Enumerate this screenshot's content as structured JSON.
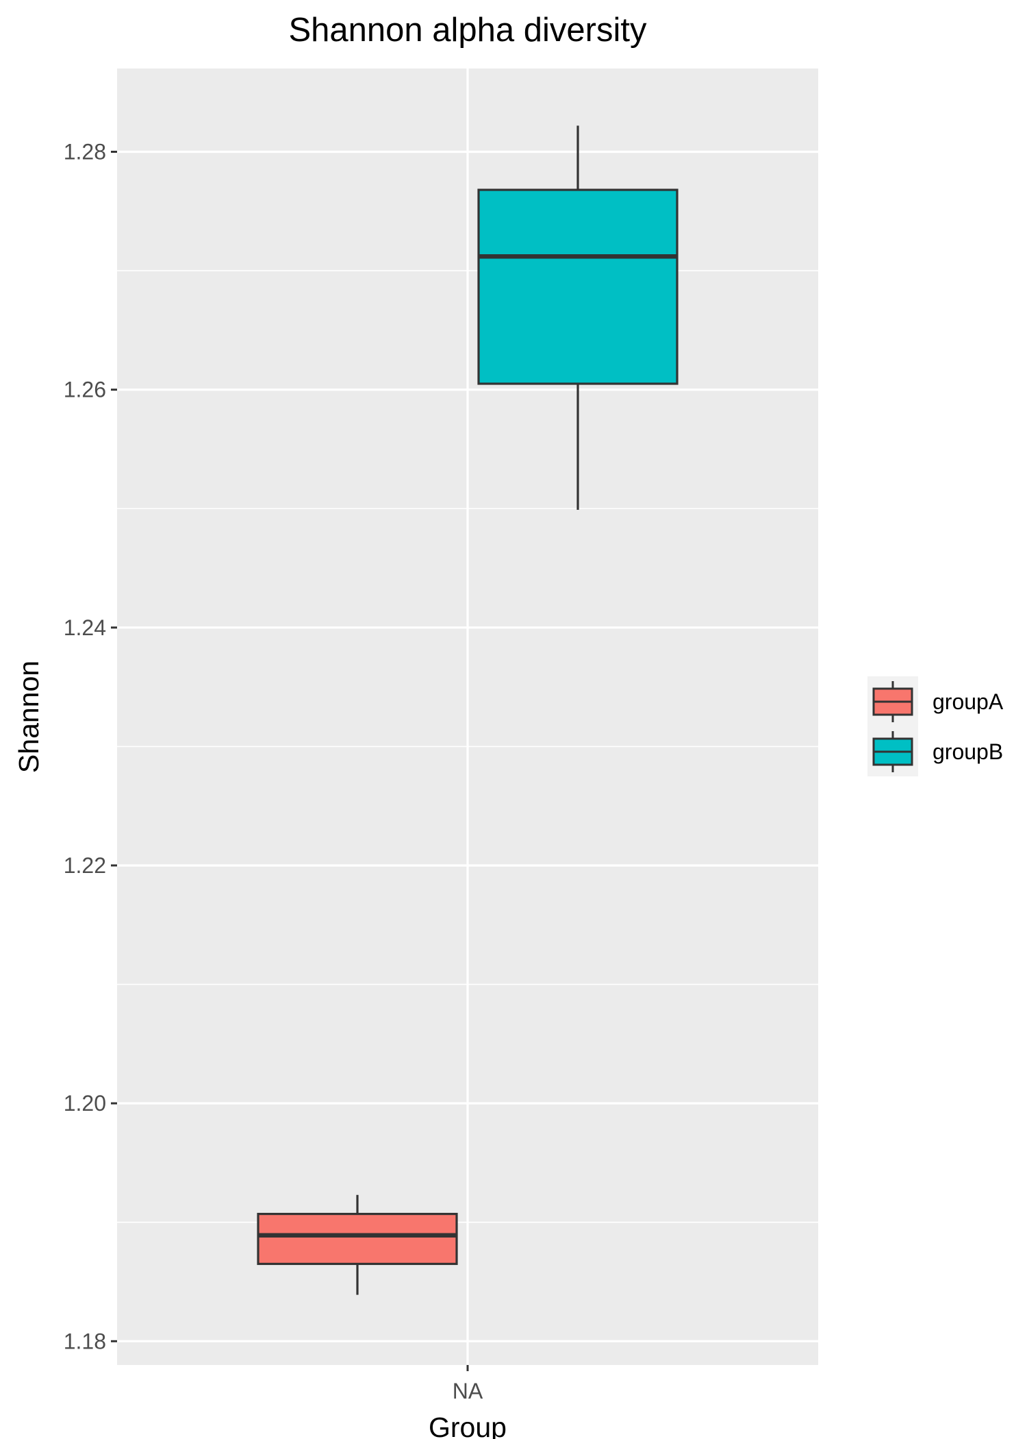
{
  "chart_data": {
    "type": "boxplot",
    "title": "Shannon alpha diversity",
    "xlabel": "Group",
    "ylabel": "Shannon",
    "categories": [
      "NA"
    ],
    "ylim": [
      1.178,
      1.287
    ],
    "yticks": [
      1.18,
      1.2,
      1.22,
      1.24,
      1.26,
      1.28
    ],
    "ytick_labels": [
      "1.18",
      "1.20",
      "1.22",
      "1.24",
      "1.26",
      "1.28"
    ],
    "grid": true,
    "legend_position": "right",
    "series": [
      {
        "name": "groupA",
        "color": "#F8766D",
        "category": "NA",
        "dodge": 0,
        "min": 1.1839,
        "q1": 1.1865,
        "median": 1.1889,
        "q3": 1.1907,
        "max": 1.1923
      },
      {
        "name": "groupB",
        "color": "#00BFC4",
        "category": "NA",
        "dodge": 1,
        "min": 1.2499,
        "q1": 1.2605,
        "median": 1.2712,
        "q3": 1.2768,
        "max": 1.2822
      }
    ]
  }
}
